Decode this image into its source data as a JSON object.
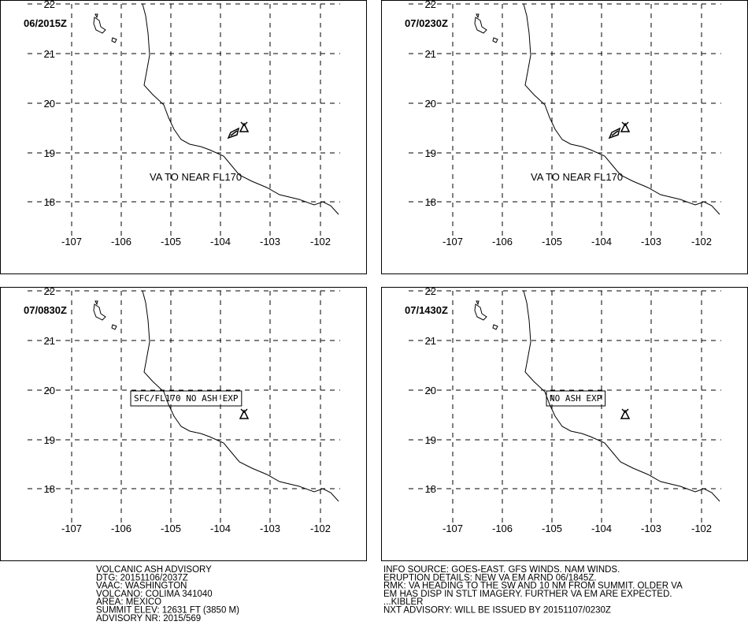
{
  "panels": [
    {
      "time": "06/2015Z",
      "annotation": "VA TO NEAR FL170",
      "boxed": false,
      "ash": true
    },
    {
      "time": "07/0230Z",
      "annotation": "VA TO NEAR FL170",
      "boxed": false,
      "ash": true
    },
    {
      "time": "07/0830Z",
      "annotation": "SFC/FL170 NO ASH EXP",
      "boxed": true,
      "ash": false
    },
    {
      "time": "07/1430Z",
      "annotation": "NO ASH EXP",
      "boxed": true,
      "ash": false
    }
  ],
  "lat_ticks": [
    22,
    21,
    20,
    19,
    18
  ],
  "lon_ticks": [
    -107,
    -106,
    -105,
    -104,
    -103,
    -102
  ],
  "advisory_left": [
    "VOLCANIC ASH ADVISORY",
    "DTG: 20151106/2037Z",
    "VAAC: WASHINGTON",
    "VOLCANO: COLIMA 341040",
    "AREA: MEXICO",
    "SUMMIT ELEV: 12631 FT (3850 M)",
    "ADVISORY NR: 2015/569"
  ],
  "advisory_right": [
    "INFO SOURCE: GOES-EAST. GFS WINDS. NAM WINDS.",
    "ERUPTION DETAILS: NEW VA EM ARND 06/1845Z.",
    "RMK: VA HEADING TO THE SW AND 10 NM FROM SUMMIT. OLDER VA",
    "EM HAS DISP IN STLT IMAGERY. FURTHER VA EM ARE EXPECTED.",
    "...KIBLER",
    "NXT ADVISORY: WILL BE ISSUED BY 20151107/0230Z"
  ]
}
